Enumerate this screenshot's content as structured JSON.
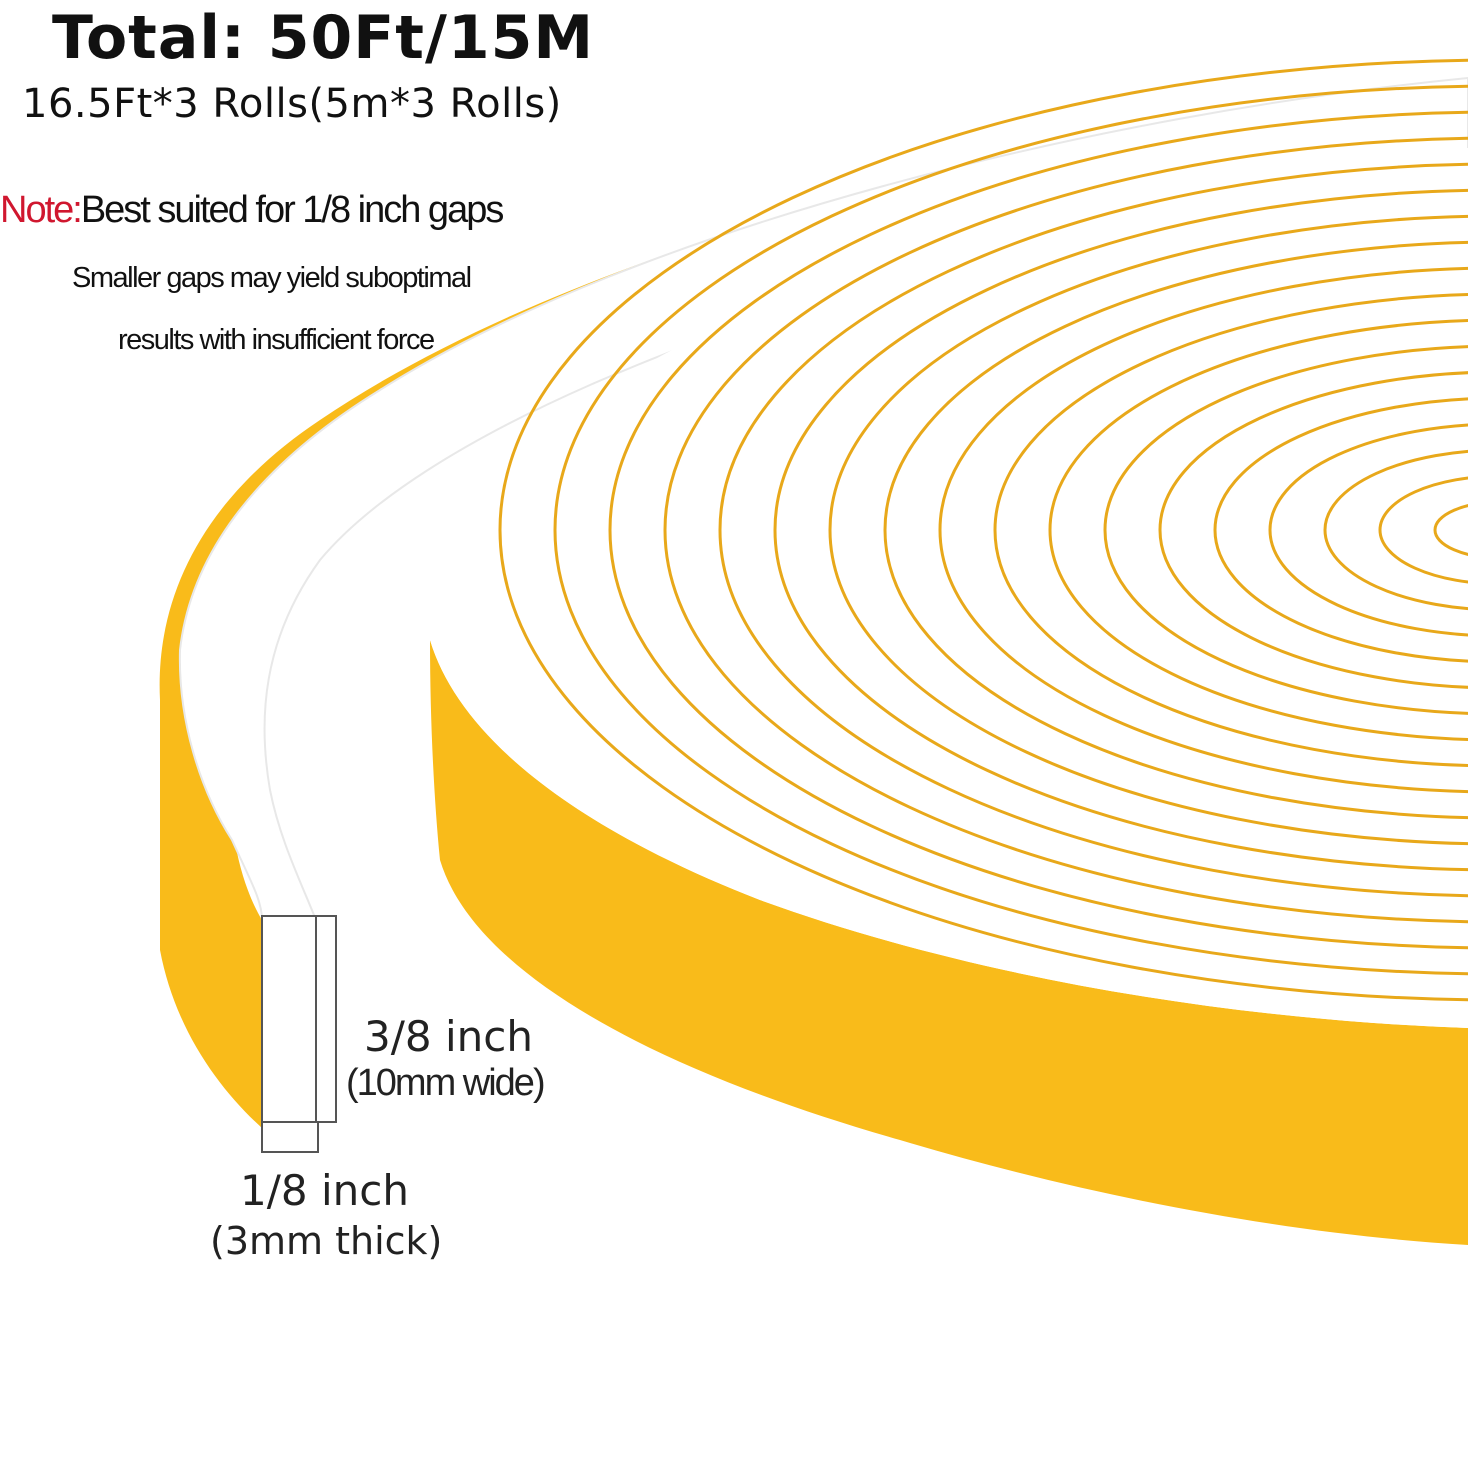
{
  "header": {
    "total": "Total: 50Ft/15M",
    "rolls": "16.5Ft*3 Rolls(5m*3 Rolls)"
  },
  "note": {
    "label": "Note:",
    "text": "Best suited for 1/8 inch gaps",
    "line1": "Smaller gaps may yield suboptimal",
    "line2": "results with insufficient force"
  },
  "dimensions": {
    "width_label": "3/8 inch",
    "width_metric": "(10mm wide)",
    "thickness_label": "1/8 inch",
    "thickness_metric": "(3mm thick)"
  },
  "colors": {
    "tape_edge": "#f9bb1a",
    "tape_face": "#ffffff",
    "ring_line": "#e8a81a",
    "note_label": "#d0172f"
  },
  "product": {
    "image": "foam-tape-roll"
  }
}
